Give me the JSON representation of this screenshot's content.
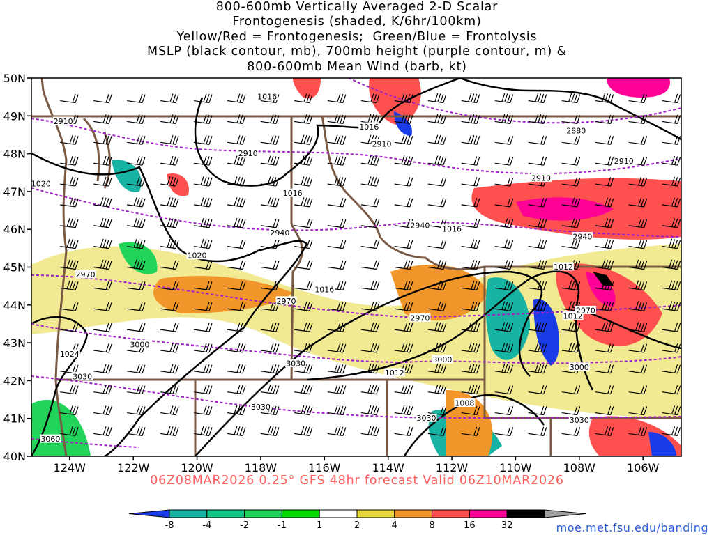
{
  "title_lines": [
    "800-600mb Vertically Averaged 2-D Scalar",
    "Frontogenesis (shaded, K/6hr/100km)",
    "Yellow/Red = Frontogenesis;  Green/Blue = Frontolysis",
    "MSLP (black contour, mb), 700mb height (purple contour, m) &",
    "800-600mb Mean Wind (barb, kt)"
  ],
  "footer": "06Z08MAR2026 0.25° GFS 48hr forecast Valid 06Z10MAR2026",
  "credit": "moe.met.fsu.edu/banding",
  "map": {
    "lon_min": -125.2,
    "lon_max": -104.8,
    "lat_min": 40,
    "lat_max": 50,
    "lat_labels": [
      "50N",
      "49N",
      "48N",
      "47N",
      "46N",
      "45N",
      "44N",
      "43N",
      "42N",
      "41N",
      "40N"
    ],
    "lat_values": [
      50,
      49,
      48,
      47,
      46,
      45,
      44,
      43,
      42,
      41,
      40
    ],
    "lon_labels": [
      "124W",
      "122W",
      "120W",
      "118W",
      "116W",
      "114W",
      "112W",
      "110W",
      "108W",
      "106W"
    ],
    "lon_values": [
      -124,
      -122,
      -120,
      -118,
      -116,
      -114,
      -112,
      -110,
      -108,
      -106
    ],
    "colors": {
      "mslp": "#000000",
      "height": "#a020c8",
      "border": "#7a5a44",
      "barb": "#000000"
    },
    "mslp_labels": [
      {
        "text": "1016",
        "lon": -117.8,
        "lat": 49.5
      },
      {
        "text": "1016",
        "lon": -114.6,
        "lat": 48.7
      },
      {
        "text": "1016",
        "lon": -117.0,
        "lat": 46.95
      },
      {
        "text": "1016",
        "lon": -112.0,
        "lat": 46.0
      },
      {
        "text": "1016",
        "lon": -116.0,
        "lat": 44.4
      },
      {
        "text": "1020",
        "lon": -124.9,
        "lat": 47.2
      },
      {
        "text": "1020",
        "lon": -120.0,
        "lat": 45.3
      },
      {
        "text": "1024",
        "lon": -124.0,
        "lat": 42.7
      },
      {
        "text": "1012",
        "lon": -113.8,
        "lat": 42.2
      },
      {
        "text": "1012",
        "lon": -108.5,
        "lat": 45.0
      },
      {
        "text": "1012",
        "lon": -108.2,
        "lat": 43.7
      },
      {
        "text": "1008",
        "lon": -111.6,
        "lat": 41.4
      },
      {
        "text": "3030",
        "lon": -116.9,
        "lat": 42.45
      }
    ],
    "height_labels": [
      {
        "text": "2910",
        "lon": -124.2,
        "lat": 48.85
      },
      {
        "text": "2910",
        "lon": -118.4,
        "lat": 48.0
      },
      {
        "text": "2910",
        "lon": -114.2,
        "lat": 48.25
      },
      {
        "text": "2910",
        "lon": -109.2,
        "lat": 47.35
      },
      {
        "text": "2910",
        "lon": -106.6,
        "lat": 47.8
      },
      {
        "text": "2880",
        "lon": -108.1,
        "lat": 48.6
      },
      {
        "text": "2940",
        "lon": -117.4,
        "lat": 45.9
      },
      {
        "text": "2940",
        "lon": -113.0,
        "lat": 46.1
      },
      {
        "text": "2940",
        "lon": -107.9,
        "lat": 45.8
      },
      {
        "text": "2970",
        "lon": -123.5,
        "lat": 44.8
      },
      {
        "text": "2970",
        "lon": -117.2,
        "lat": 44.1
      },
      {
        "text": "2970",
        "lon": -113.0,
        "lat": 43.65
      },
      {
        "text": "2970",
        "lon": -107.8,
        "lat": 43.85
      },
      {
        "text": "3000",
        "lon": -121.8,
        "lat": 42.95
      },
      {
        "text": "3000",
        "lon": -112.3,
        "lat": 42.55
      },
      {
        "text": "3000",
        "lon": -108.0,
        "lat": 42.35
      },
      {
        "text": "3030",
        "lon": -123.6,
        "lat": 42.1
      },
      {
        "text": "3030",
        "lon": -118.0,
        "lat": 41.3
      },
      {
        "text": "3030",
        "lon": -112.8,
        "lat": 41.0
      },
      {
        "text": "3030",
        "lon": -108.0,
        "lat": 40.95
      },
      {
        "text": "3060",
        "lon": -124.6,
        "lat": 40.45
      }
    ]
  },
  "colorbar": {
    "labels": [
      "-8",
      "-4",
      "-2",
      "-1",
      "1",
      "2",
      "4",
      "8",
      "16",
      "32"
    ],
    "colors": [
      "#1a3be8",
      "#17b4a4",
      "#13c887",
      "#22d45a",
      "#00dc00",
      "#ffffff",
      "#e6d83a",
      "#f0962a",
      "#ff5050",
      "#ff0096",
      "#000000",
      "#a0a0a0"
    ]
  }
}
